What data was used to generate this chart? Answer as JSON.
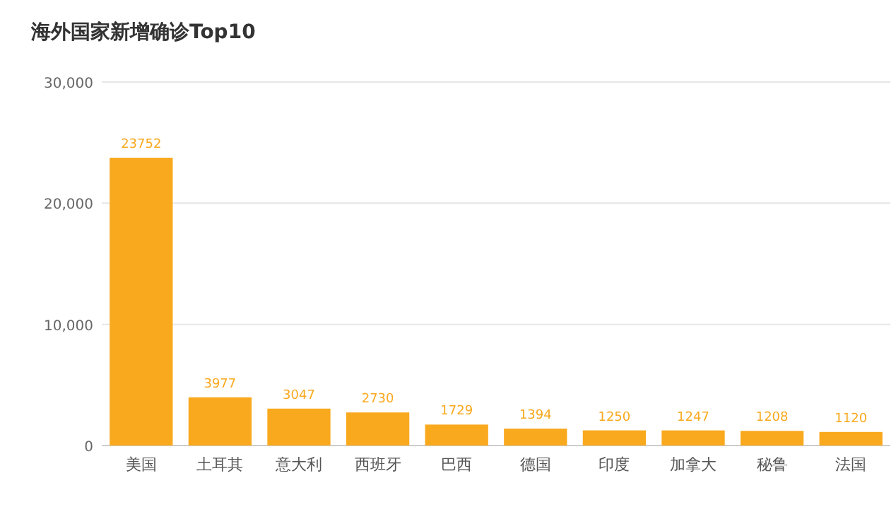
{
  "chart_data": {
    "type": "bar",
    "title": "海外国家新增确诊Top10",
    "categories": [
      "美国",
      "土耳其",
      "意大利",
      "西班牙",
      "巴西",
      "德国",
      "印度",
      "加拿大",
      "秘鲁",
      "法国"
    ],
    "values": [
      23752,
      3977,
      3047,
      2730,
      1729,
      1394,
      1250,
      1247,
      1208,
      1120
    ],
    "color": "#f9a91e",
    "ylim": [
      0,
      30000
    ],
    "yticks": [
      0,
      {
        "value": 10000,
        "label": "10,000"
      },
      {
        "value": 20000,
        "label": "20,000"
      },
      {
        "value": 30000,
        "label": "30,000"
      }
    ],
    "grid": "y",
    "data_labels": true
  }
}
